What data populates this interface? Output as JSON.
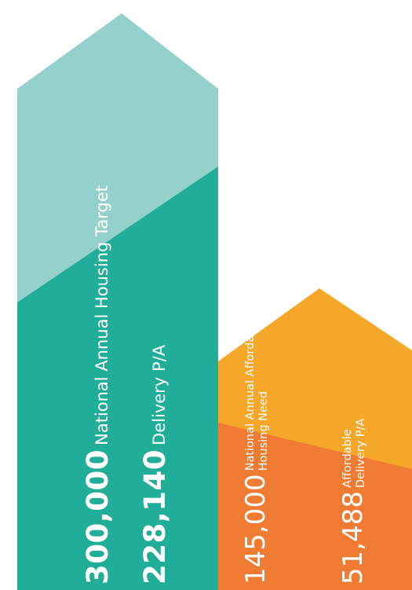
{
  "chart_data": {
    "type": "bar",
    "orientation": "vertical",
    "style": "arrow-bars",
    "groups": [
      {
        "name": "national",
        "target_value": 300000,
        "target_value_text": "300,000",
        "target_label": "National Annual Housing Target",
        "delivery_value": 228140,
        "delivery_value_text": "228,140",
        "delivery_label": "Delivery P/A",
        "colors": {
          "target": "#95d1cc",
          "delivery": "#21ae98"
        }
      },
      {
        "name": "affordable",
        "target_value": 145000,
        "target_value_text": "145,000",
        "target_label_line1": "National Annual Affordable",
        "target_label_line2": "Housing Need",
        "delivery_value": 51488,
        "delivery_value_text": "51,488",
        "delivery_label_line1": "Affordable",
        "delivery_label_line2": "Delivery P/A",
        "colors": {
          "target": "#f5a72a",
          "delivery": "#f07c33"
        }
      }
    ]
  }
}
